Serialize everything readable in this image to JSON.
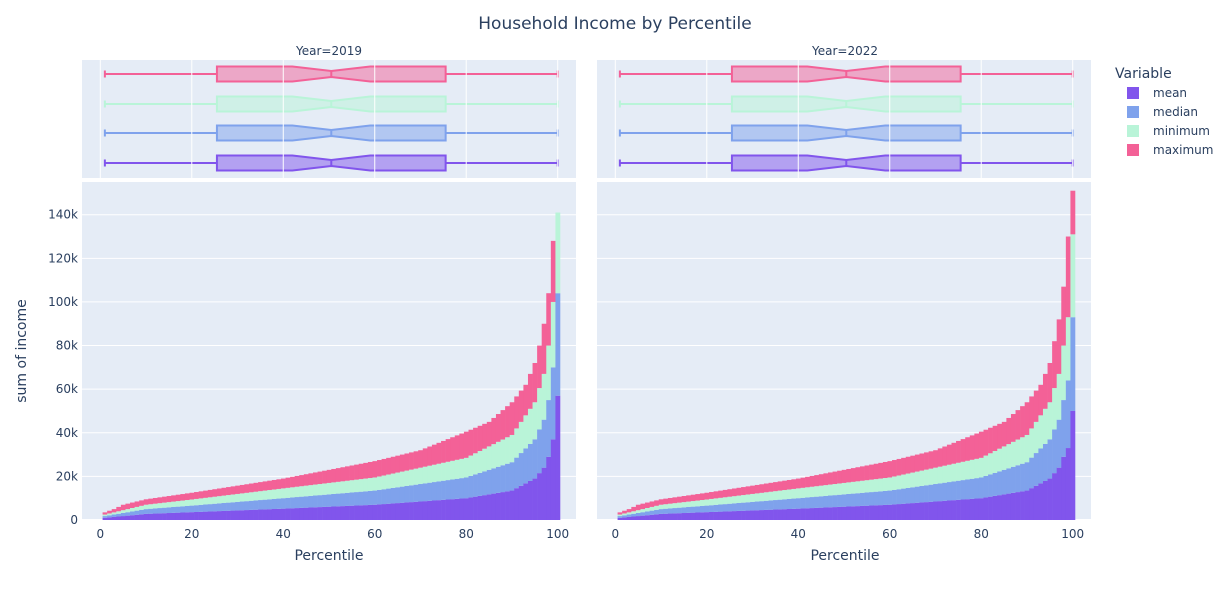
{
  "chart_data": {
    "type": "bar",
    "barmode": "stack",
    "title": "Household Income by Percentile",
    "xlabel": "Percentile",
    "ylabel": "sum of income",
    "xlim": [
      -4,
      104
    ],
    "ylim": [
      0,
      155000
    ],
    "x_ticks": [
      0,
      20,
      40,
      60,
      80,
      100
    ],
    "x_tick_labels": [
      "0",
      "20",
      "40",
      "60",
      "80",
      "100"
    ],
    "y_ticks": [
      0,
      20000,
      40000,
      60000,
      80000,
      100000,
      120000,
      140000
    ],
    "y_tick_labels": [
      "0",
      "20k",
      "40k",
      "60k",
      "80k",
      "100k",
      "120k",
      "140k"
    ],
    "background": "#e5ecf6",
    "grid": true,
    "legend": {
      "title": "Variable",
      "placement": "top-right"
    },
    "series": [
      {
        "name": "mean",
        "color": "#8155ec"
      },
      {
        "name": "median",
        "color": "#7fa2ec"
      },
      {
        "name": "minimum",
        "color": "#b9f4d8"
      },
      {
        "name": "maximum",
        "color": "#f36197"
      }
    ],
    "percentiles": {
      "min": 1,
      "max": 100
    },
    "panels": [
      {
        "facet_label": "Year=2019",
        "total_checkpoints": {
          "x": [
            1,
            3,
            5,
            10,
            20,
            40,
            60,
            70,
            80,
            85,
            90,
            93,
            95,
            96,
            97,
            98,
            99,
            100
          ],
          "total": [
            3500,
            5000,
            7000,
            9500,
            12500,
            19000,
            27000,
            32000,
            40500,
            45000,
            54000,
            62000,
            72000,
            80000,
            90000,
            104000,
            128000,
            141000
          ]
        },
        "mean_checkpoints": {
          "x": [
            1,
            10,
            20,
            40,
            60,
            80,
            90,
            95,
            97,
            98,
            99,
            100
          ],
          "value": [
            1000,
            2800,
            3600,
            5200,
            7000,
            10000,
            13500,
            19000,
            24000,
            29000,
            37000,
            57000
          ]
        },
        "median_checkpoints": {
          "x": [
            1,
            10,
            20,
            40,
            60,
            80,
            90,
            95,
            97,
            98,
            99,
            100
          ],
          "value": [
            800,
            2200,
            3000,
            4800,
            6500,
            9500,
            13000,
            18000,
            22000,
            26000,
            33000,
            47000
          ]
        },
        "minimum_checkpoints": {
          "x": [
            1,
            10,
            20,
            40,
            60,
            80,
            90,
            95,
            97,
            98,
            99,
            100
          ],
          "value": [
            700,
            2000,
            2800,
            4500,
            6000,
            9000,
            12500,
            17000,
            21000,
            25000,
            30000,
            37000
          ]
        },
        "box": {
          "q1": 25.5,
          "median": 50.5,
          "q3": 75.5,
          "min": 1,
          "max": 100,
          "notch_low": 42,
          "notch_high": 59
        }
      },
      {
        "facet_label": "Year=2022",
        "total_checkpoints": {
          "x": [
            1,
            3,
            5,
            10,
            20,
            40,
            60,
            70,
            80,
            85,
            90,
            93,
            95,
            96,
            97,
            98,
            99,
            100
          ],
          "total": [
            3500,
            5000,
            7000,
            9500,
            12500,
            19000,
            27000,
            32000,
            40500,
            45000,
            54000,
            62000,
            72000,
            82000,
            92000,
            107000,
            130000,
            151000
          ]
        },
        "mean_checkpoints": {
          "x": [
            1,
            10,
            20,
            40,
            60,
            80,
            90,
            95,
            97,
            98,
            99,
            100
          ],
          "value": [
            1000,
            2800,
            3600,
            5200,
            7000,
            10000,
            13500,
            19000,
            24000,
            29000,
            33000,
            50000
          ]
        },
        "median_checkpoints": {
          "x": [
            1,
            10,
            20,
            40,
            60,
            80,
            90,
            95,
            97,
            98,
            99,
            100
          ],
          "value": [
            800,
            2200,
            3000,
            4800,
            6500,
            9500,
            13000,
            18000,
            22000,
            26000,
            31000,
            43000
          ]
        },
        "minimum_checkpoints": {
          "x": [
            1,
            10,
            20,
            40,
            60,
            80,
            90,
            95,
            97,
            98,
            99,
            100
          ],
          "value": [
            700,
            2000,
            2800,
            4500,
            6000,
            9000,
            12500,
            17000,
            21000,
            25000,
            29000,
            38000
          ]
        },
        "box": {
          "q1": 25.5,
          "median": 50.5,
          "q3": 75.5,
          "min": 1,
          "max": 100,
          "notch_low": 42,
          "notch_high": 59
        }
      }
    ]
  }
}
